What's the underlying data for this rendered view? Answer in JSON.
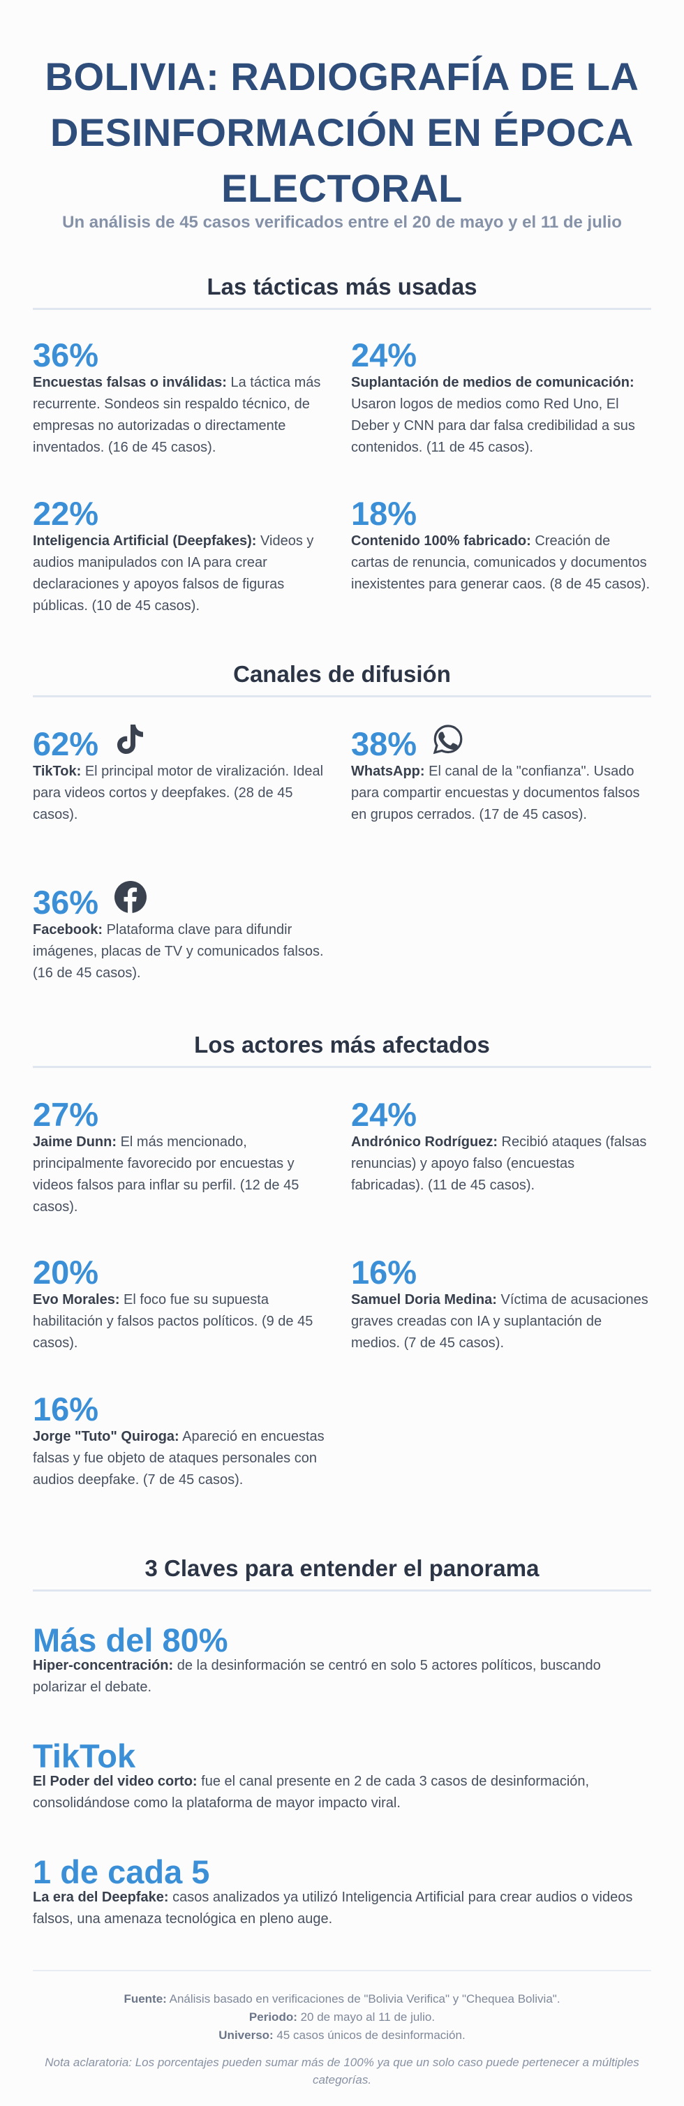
{
  "title": {
    "line1": "BOLIVIA: RADIOGRAFÍA DE LA",
    "line2": "DESINFORMACIÓN EN ÉPOCA",
    "line3": "ELECTORAL"
  },
  "subtitle": "Un análisis de 45 casos verificados entre el 20 de mayo y el 11 de julio",
  "tacticas": {
    "heading": "Las tácticas más usadas",
    "items": [
      {
        "pct": "36%",
        "label": "Encuestas falsas o inválidas:",
        "text": " La táctica más recurrente. Sondeos sin respaldo técnico, de empresas no autorizadas o directamente inventados. (16 de 45 casos)."
      },
      {
        "pct": "24%",
        "label": "Suplantación de medios de comunicación:",
        "text": " Usaron logos de medios como Red Uno, El Deber y CNN para dar falsa credibilidad a sus contenidos. (11 de 45 casos)."
      },
      {
        "pct": "22%",
        "label": "Inteligencia Artificial (Deepfakes):",
        "text": " Videos y audios manipulados con IA para crear declaraciones y apoyos falsos de figuras públicas. (10 de 45 casos)."
      },
      {
        "pct": "18%",
        "label": "Contenido 100% fabricado:",
        "text": " Creación de cartas de renuncia, comunicados y documentos inexistentes para generar caos. (8 de 45 casos)."
      }
    ]
  },
  "canales": {
    "heading": "Canales de difusión",
    "items": [
      {
        "pct": "62%",
        "icon": "tiktok-icon",
        "label": "TikTok:",
        "text": " El principal motor de viralización. Ideal para videos cortos y deepfakes. (28 de 45 casos)."
      },
      {
        "pct": "38%",
        "icon": "whatsapp-icon",
        "label": "WhatsApp:",
        "text": " El canal de la \"confianza\". Usado para compartir encuestas y documentos falsos en grupos cerrados. (17 de 45 casos)."
      },
      {
        "pct": "36%",
        "icon": "facebook-icon",
        "label": "Facebook:",
        "text": " Plataforma clave para difundir imágenes, placas de TV y comunicados falsos. (16 de 45 casos)."
      }
    ]
  },
  "actores": {
    "heading": "Los actores más afectados",
    "items": [
      {
        "pct": "27%",
        "label": "Jaime Dunn:",
        "text": " El más mencionado, principalmente favorecido por encuestas y videos falsos para inflar su perfil. (12 de 45 casos)."
      },
      {
        "pct": "24%",
        "label": "Andrónico Rodríguez:",
        "text": " Recibió ataques (falsas renuncias) y apoyo falso (encuestas fabricadas). (11 de 45 casos)."
      },
      {
        "pct": "20%",
        "label": "Evo Morales:",
        "text": " El foco fue su supuesta habilitación y falsos pactos políticos. (9 de 45 casos)."
      },
      {
        "pct": "16%",
        "label": "Samuel Doria Medina:",
        "text": " Víctima de acusaciones graves creadas con IA y suplantación de medios. (7 de 45 casos)."
      },
      {
        "pct": "16%",
        "label": "Jorge \"Tuto\" Quiroga:",
        "text": " Apareció en encuestas falsas y fue objeto de ataques personales con audios deepfake. (7 de 45 casos)."
      }
    ]
  },
  "claves": {
    "heading": "3 Claves para entender el panorama",
    "items": [
      {
        "big": "Más del 80%",
        "label": "Hiper-concentración:",
        "text": " de la desinformación se centró en solo 5 actores políticos, buscando polarizar el debate."
      },
      {
        "big": "TikTok",
        "label": "El Poder del video corto:",
        "text": " fue el canal presente en 2 de cada 3 casos de desinformación, consolidándose como la plataforma de mayor impacto viral."
      },
      {
        "big": "1 de cada 5",
        "label": "La era del Deepfake:",
        "text": " casos analizados ya utilizó Inteligencia Artificial para crear audios o videos falsos, una amenaza tecnológica en pleno auge."
      }
    ]
  },
  "footer": {
    "fuente_label": "Fuente:",
    "fuente": " Análisis basado en verificaciones de \"Bolivia Verifica\" y \"Chequea Bolivia\".",
    "periodo_label": "Periodo:",
    "periodo": " 20 de mayo al 11 de julio.",
    "universo_label": "Universo:",
    "universo": " 45 casos únicos de desinformación.",
    "nota": "Nota aclaratoria: Los porcentajes pueden sumar más de 100% ya que un solo caso puede pertenecer a múltiples categorías."
  },
  "colors": {
    "accent": "#3b8fd6",
    "title": "#2e4d7a",
    "text": "#47505e"
  }
}
